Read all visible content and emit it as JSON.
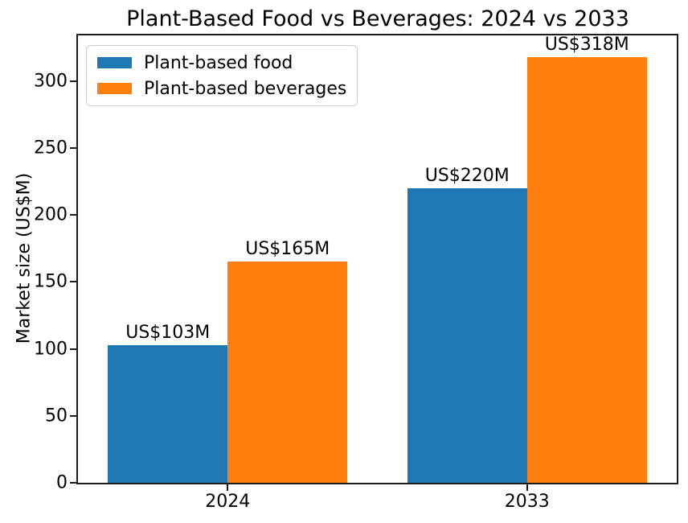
{
  "chart_data": {
    "type": "bar",
    "title": "Plant-Based Food vs Beverages: 2024 vs 2033",
    "xlabel": "",
    "ylabel": "Market size (US$M)",
    "categories": [
      "2024",
      "2033"
    ],
    "series": [
      {
        "name": "Plant-based food",
        "color": "#1f77b4",
        "values": [
          103,
          220
        ],
        "annotations": [
          "US$103M",
          "US$220M"
        ]
      },
      {
        "name": "Plant-based beverages",
        "color": "#ff7f0e",
        "values": [
          165,
          318
        ],
        "annotations": [
          "US$165M",
          "US$318M"
        ]
      }
    ],
    "yticks": [
      0,
      50,
      100,
      150,
      200,
      250,
      300
    ],
    "ylim": [
      0,
      334
    ],
    "grid": false,
    "legend_position": "upper-left",
    "bar_group_centers_fraction": [
      0.25,
      0.75
    ],
    "bar_width_fraction": 0.2
  }
}
